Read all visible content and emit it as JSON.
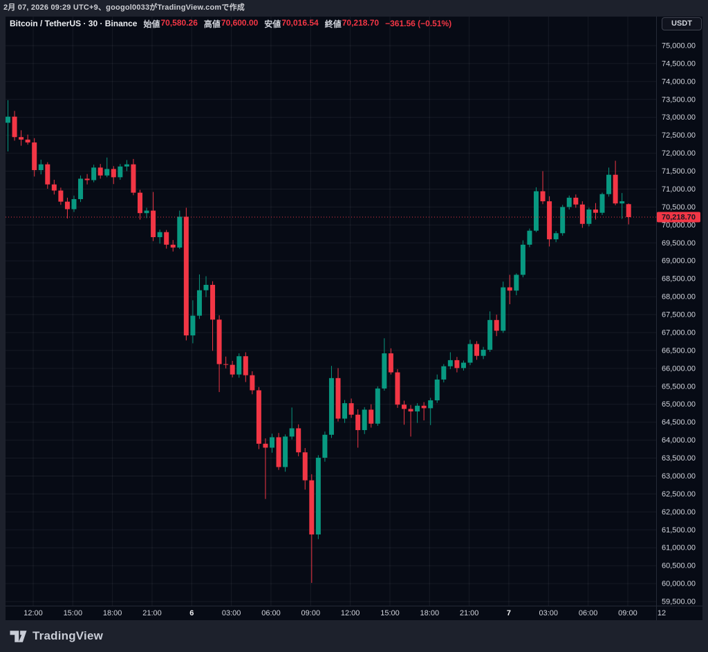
{
  "attribution": {
    "text": "2月 07, 2026 09:29 UTC+9、googol0033がTradingView.comで作成"
  },
  "legend": {
    "title": "Bitcoin / TetherUS · 30 · Binance",
    "fields": [
      {
        "label": "始値",
        "value": "70,580.26"
      },
      {
        "label": "高値",
        "value": "70,600.00"
      },
      {
        "label": "安値",
        "value": "70,016.54"
      },
      {
        "label": "終値",
        "value": "70,218.70"
      }
    ],
    "change": "−361.56 (−0.51%)"
  },
  "price_axis": {
    "currency_button": "USDT",
    "last_price_label": "70,218.70",
    "ticks": [
      {
        "label": "75,000.00",
        "price": 75000
      },
      {
        "label": "74,500.00",
        "price": 74500
      },
      {
        "label": "74,000.00",
        "price": 74000
      },
      {
        "label": "73,500.00",
        "price": 73500
      },
      {
        "label": "73,000.00",
        "price": 73000
      },
      {
        "label": "72,500.00",
        "price": 72500
      },
      {
        "label": "72,000.00",
        "price": 72000
      },
      {
        "label": "71,500.00",
        "price": 71500
      },
      {
        "label": "71,000.00",
        "price": 71000
      },
      {
        "label": "70,500.00",
        "price": 70500
      },
      {
        "label": "70,000.00",
        "price": 70000
      },
      {
        "label": "69,500.00",
        "price": 69500
      },
      {
        "label": "69,000.00",
        "price": 69000
      },
      {
        "label": "68,500.00",
        "price": 68500
      },
      {
        "label": "68,000.00",
        "price": 68000
      },
      {
        "label": "67,500.00",
        "price": 67500
      },
      {
        "label": "67,000.00",
        "price": 67000
      },
      {
        "label": "66,500.00",
        "price": 66500
      },
      {
        "label": "66,000.00",
        "price": 66000
      },
      {
        "label": "65,500.00",
        "price": 65500
      },
      {
        "label": "65,000.00",
        "price": 65000
      },
      {
        "label": "64,500.00",
        "price": 64500
      },
      {
        "label": "64,000.00",
        "price": 64000
      },
      {
        "label": "63,500.00",
        "price": 63500
      },
      {
        "label": "63,000.00",
        "price": 63000
      },
      {
        "label": "62,500.00",
        "price": 62500
      },
      {
        "label": "62,000.00",
        "price": 62000
      },
      {
        "label": "61,500.00",
        "price": 61500
      },
      {
        "label": "61,000.00",
        "price": 61000
      },
      {
        "label": "60,500.00",
        "price": 60500
      },
      {
        "label": "60,000.00",
        "price": 60000
      },
      {
        "label": "59,500.00",
        "price": 59500
      }
    ]
  },
  "time_axis": {
    "ticks": [
      {
        "label": "12:00",
        "day": false
      },
      {
        "label": "15:00",
        "day": false
      },
      {
        "label": "18:00",
        "day": false
      },
      {
        "label": "21:00",
        "day": false
      },
      {
        "label": "6",
        "day": true
      },
      {
        "label": "03:00",
        "day": false
      },
      {
        "label": "06:00",
        "day": false
      },
      {
        "label": "09:00",
        "day": false
      },
      {
        "label": "12:00",
        "day": false
      },
      {
        "label": "15:00",
        "day": false
      },
      {
        "label": "18:00",
        "day": false
      },
      {
        "label": "21:00",
        "day": false
      },
      {
        "label": "7",
        "day": true
      },
      {
        "label": "03:00",
        "day": false
      },
      {
        "label": "06:00",
        "day": false
      },
      {
        "label": "09:00",
        "day": false
      },
      {
        "label": "12",
        "day": false
      }
    ]
  },
  "footer": {
    "brand": "TradingView"
  },
  "colors": {
    "up": "#089981",
    "down": "#f23645",
    "pane_bg": "#070b15",
    "outer_bg": "#1d212c",
    "grid": "rgba(240,243,250,0.07)",
    "separator": "#262b38",
    "axis_text": "#d1d4dc",
    "day_text": "#f0f1f3",
    "badge_bg": "#f23645",
    "badge_text": "#131722"
  },
  "chart_data": {
    "type": "candlestick",
    "title": "Bitcoin / TetherUS · 30 · Binance",
    "symbol": "Bitcoin / TetherUS",
    "interval_minutes": 30,
    "exchange": "Binance",
    "open": 70580.26,
    "high": 70600.0,
    "low": 70016.54,
    "close": 70218.7,
    "change": -361.56,
    "change_pct": -0.51,
    "last_price": 70218.7,
    "ylim": [
      59500,
      75000
    ],
    "y_step": 500,
    "grid": true,
    "candles": [
      [
        72850,
        73480,
        72050,
        73020
      ],
      [
        73020,
        73180,
        72350,
        72450
      ],
      [
        72450,
        72640,
        72210,
        72380
      ],
      [
        72380,
        72520,
        72240,
        72300
      ],
      [
        72300,
        72420,
        71350,
        71530
      ],
      [
        71530,
        71820,
        71410,
        71690
      ],
      [
        71690,
        71750,
        71010,
        71130
      ],
      [
        71130,
        71260,
        70850,
        70960
      ],
      [
        70960,
        71040,
        70560,
        70650
      ],
      [
        70650,
        70760,
        70180,
        70440
      ],
      [
        70440,
        70820,
        70360,
        70720
      ],
      [
        70720,
        71380,
        70640,
        71290
      ],
      [
        71290,
        71420,
        71130,
        71250
      ],
      [
        71250,
        71680,
        71190,
        71600
      ],
      [
        71600,
        71700,
        71290,
        71380
      ],
      [
        71380,
        71880,
        71330,
        71560
      ],
      [
        71560,
        71640,
        71140,
        71330
      ],
      [
        71330,
        71700,
        71260,
        71630
      ],
      [
        71630,
        71810,
        71500,
        71690
      ],
      [
        71690,
        71840,
        70830,
        70900
      ],
      [
        70900,
        70980,
        70150,
        70330
      ],
      [
        70330,
        70480,
        70190,
        70400
      ],
      [
        70400,
        70920,
        69550,
        69660
      ],
      [
        69660,
        69870,
        69480,
        69800
      ],
      [
        69800,
        69860,
        69340,
        69450
      ],
      [
        69450,
        69580,
        69260,
        69370
      ],
      [
        69370,
        70400,
        69330,
        70230
      ],
      [
        70230,
        70480,
        66780,
        66920
      ],
      [
        66920,
        67900,
        66700,
        67470
      ],
      [
        67470,
        68620,
        67380,
        68180
      ],
      [
        68180,
        68570,
        67990,
        68330
      ],
      [
        68330,
        68430,
        66490,
        67360
      ],
      [
        67360,
        67480,
        65340,
        66120
      ],
      [
        66120,
        66330,
        66000,
        66100
      ],
      [
        66100,
        66210,
        65750,
        65830
      ],
      [
        65830,
        66420,
        65740,
        66340
      ],
      [
        66340,
        66450,
        65620,
        65810
      ],
      [
        65810,
        65920,
        65280,
        65390
      ],
      [
        65390,
        65480,
        63750,
        63900
      ],
      [
        63900,
        64050,
        62360,
        63790
      ],
      [
        63790,
        64180,
        63650,
        64080
      ],
      [
        64080,
        64200,
        63170,
        63250
      ],
      [
        63250,
        64160,
        63120,
        64100
      ],
      [
        64100,
        64910,
        64020,
        64330
      ],
      [
        64330,
        64440,
        63550,
        63660
      ],
      [
        63660,
        63780,
        62620,
        62880
      ],
      [
        62880,
        63050,
        60020,
        61370
      ],
      [
        61370,
        63580,
        61240,
        63510
      ],
      [
        63510,
        64240,
        63400,
        64150
      ],
      [
        64150,
        66070,
        64060,
        65730
      ],
      [
        65730,
        66010,
        64520,
        64600
      ],
      [
        64600,
        65120,
        64480,
        65030
      ],
      [
        65030,
        65160,
        64620,
        64710
      ],
      [
        64710,
        64860,
        63790,
        64280
      ],
      [
        64280,
        64920,
        64170,
        64850
      ],
      [
        64850,
        65000,
        64350,
        64460
      ],
      [
        64460,
        65500,
        64400,
        65440
      ],
      [
        65440,
        66840,
        65380,
        66420
      ],
      [
        66420,
        66560,
        65830,
        65890
      ],
      [
        65890,
        65980,
        64900,
        64990
      ],
      [
        64990,
        65100,
        64430,
        64870
      ],
      [
        64870,
        64980,
        64100,
        64800
      ],
      [
        64800,
        65030,
        64480,
        64960
      ],
      [
        64960,
        65060,
        64550,
        64890
      ],
      [
        64890,
        65180,
        64420,
        65110
      ],
      [
        65110,
        65830,
        65040,
        65690
      ],
      [
        65690,
        66120,
        65610,
        66060
      ],
      [
        66060,
        66450,
        65980,
        66230
      ],
      [
        66230,
        66320,
        65890,
        66010
      ],
      [
        66010,
        66220,
        65940,
        66160
      ],
      [
        66160,
        66800,
        66090,
        66680
      ],
      [
        66680,
        66760,
        66240,
        66350
      ],
      [
        66350,
        66600,
        66260,
        66520
      ],
      [
        66520,
        67590,
        66460,
        67350
      ],
      [
        67350,
        67500,
        66900,
        67050
      ],
      [
        67050,
        68420,
        66990,
        68260
      ],
      [
        68260,
        68610,
        67790,
        68170
      ],
      [
        68170,
        68650,
        68040,
        68610
      ],
      [
        68610,
        69570,
        68540,
        69450
      ],
      [
        69450,
        69900,
        69380,
        69840
      ],
      [
        69840,
        71050,
        69800,
        70940
      ],
      [
        70940,
        71500,
        70580,
        70660
      ],
      [
        70660,
        70800,
        69400,
        69600
      ],
      [
        69600,
        69830,
        69520,
        69770
      ],
      [
        69770,
        70560,
        69700,
        70500
      ],
      [
        70500,
        70820,
        70430,
        70760
      ],
      [
        70760,
        70850,
        70480,
        70570
      ],
      [
        70570,
        70660,
        69920,
        70030
      ],
      [
        70030,
        70480,
        69960,
        70430
      ],
      [
        70430,
        70610,
        70150,
        70340
      ],
      [
        70340,
        70900,
        70280,
        70860
      ],
      [
        70860,
        71600,
        70790,
        71400
      ],
      [
        71400,
        71790,
        70550,
        70600
      ],
      [
        70600,
        70890,
        70170,
        70660
      ],
      [
        70580.26,
        70600,
        70016.54,
        70218.7
      ]
    ]
  }
}
